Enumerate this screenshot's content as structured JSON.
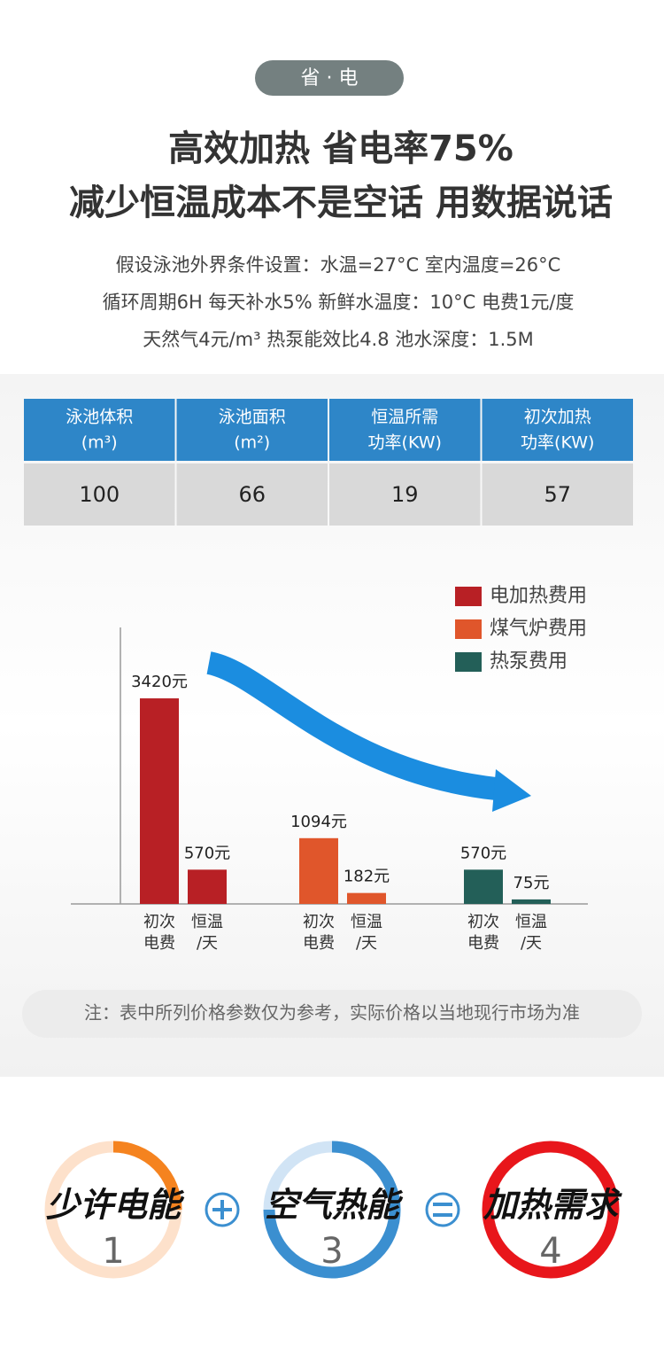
{
  "badge": "省 · 电",
  "headline": [
    "高效加热 省电率75%",
    "减少恒温成本不是空话 用数据说话"
  ],
  "conditions": [
    "假设泳池外界条件设置：水温=27°C 室内温度=26°C",
    "循环周期6H  每天补水5%  新鲜水温度：10°C  电费1元/度",
    "天然气4元/m³  热泵能效比4.8  池水深度：1.5M"
  ],
  "table": {
    "header": [
      [
        "泳池体积",
        "(m³)"
      ],
      [
        "泳池面积",
        "(m²)"
      ],
      [
        "恒温所需",
        "功率(KW)"
      ],
      [
        "初次加热",
        "功率(KW)"
      ]
    ],
    "rows": [
      [
        "100",
        "66",
        "19",
        "57"
      ]
    ]
  },
  "chart_data": {
    "type": "bar",
    "categories": [
      [
        "初次",
        "电费"
      ],
      [
        "恒温",
        "/天"
      ]
    ],
    "series": [
      {
        "name": "电加热费用",
        "color": "#b82025",
        "values": [
          3420,
          570
        ],
        "value_labels": [
          "3420元",
          "570元"
        ]
      },
      {
        "name": "煤气炉费用",
        "color": "#e0562b",
        "values": [
          1094,
          182
        ],
        "value_labels": [
          "1094元",
          "182元"
        ]
      },
      {
        "name": "热泵费用",
        "color": "#235f58",
        "values": [
          570,
          75
        ],
        "value_labels": [
          "570元",
          "75元"
        ]
      }
    ],
    "ylim": [
      0,
      4600
    ]
  },
  "note": "注：表中所列价格参数仅为参考，实际价格以当地现行市场为准",
  "equation": [
    {
      "label": "少许电能",
      "number": "1"
    },
    {
      "label": "空气热能",
      "number": "3"
    },
    {
      "label": "加热需求",
      "number": "4"
    }
  ]
}
